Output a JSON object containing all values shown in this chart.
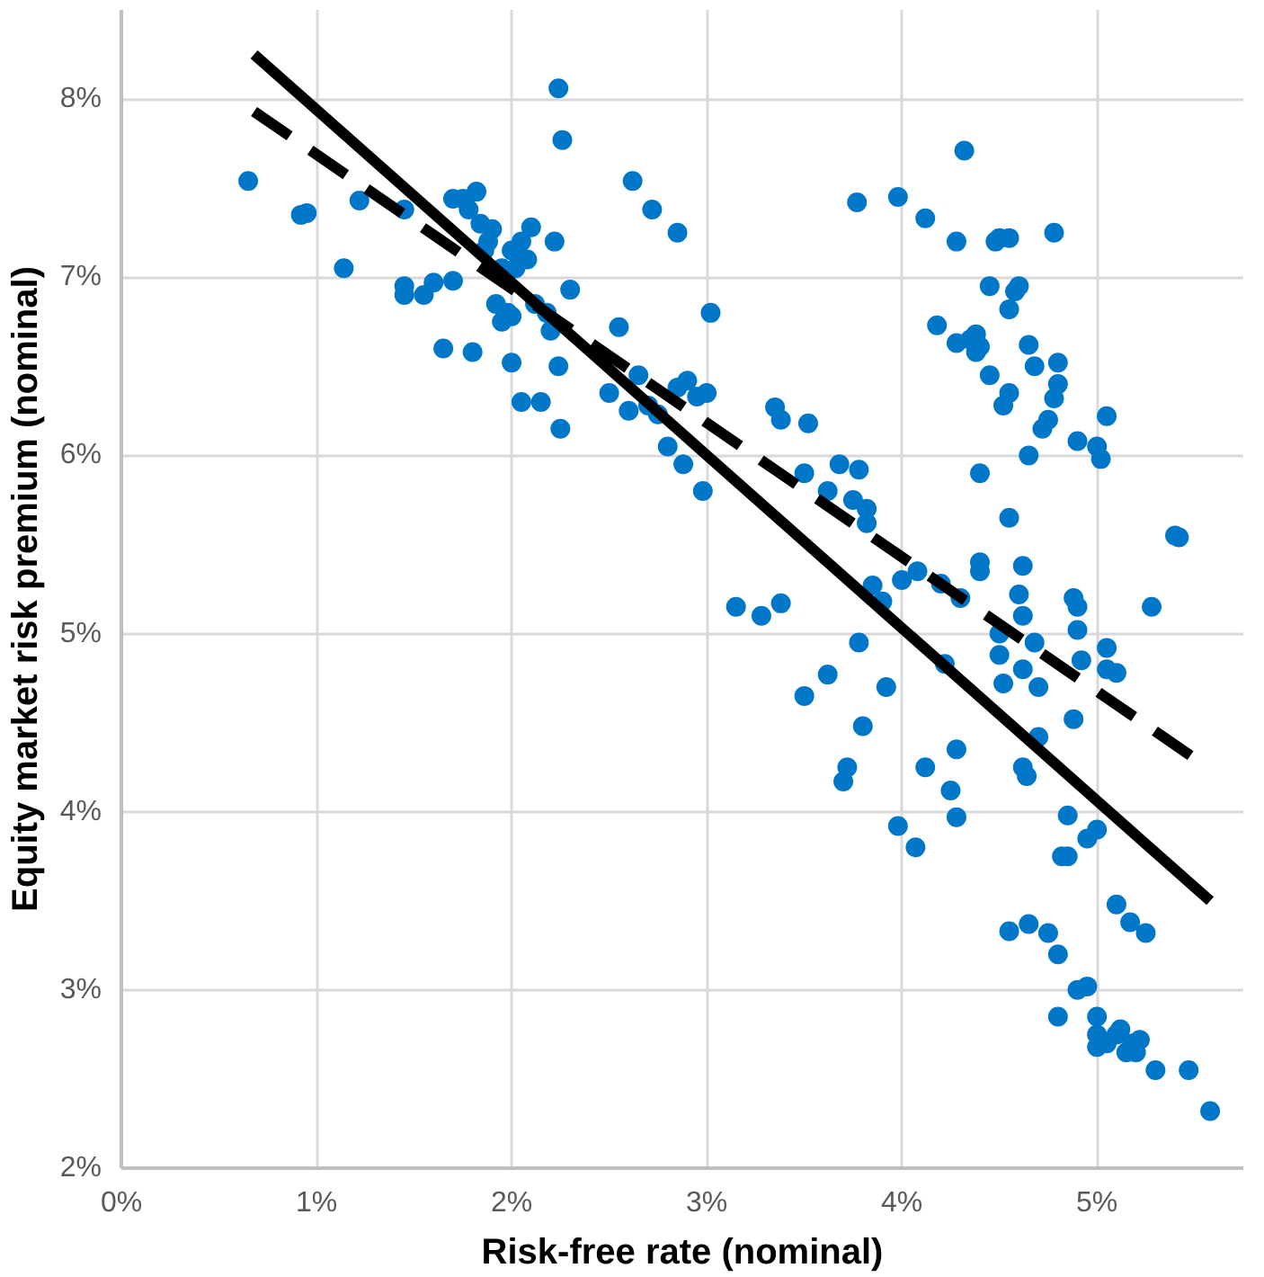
{
  "chart_data": {
    "type": "scatter",
    "xlabel": "Risk-free rate (nominal)",
    "ylabel": "Equity market risk premium (nominal)",
    "xlim": [
      0,
      5.75
    ],
    "ylim": [
      2,
      8.5
    ],
    "xticks": [
      {
        "value": 0,
        "label": "0%"
      },
      {
        "value": 1,
        "label": "1%"
      },
      {
        "value": 2,
        "label": "2%"
      },
      {
        "value": 3,
        "label": "3%"
      },
      {
        "value": 4,
        "label": "4%"
      },
      {
        "value": 5,
        "label": "5%"
      }
    ],
    "yticks": [
      {
        "value": 2,
        "label": "2%"
      },
      {
        "value": 3,
        "label": "3%"
      },
      {
        "value": 4,
        "label": "4%"
      },
      {
        "value": 5,
        "label": "5%"
      },
      {
        "value": 6,
        "label": "6%"
      },
      {
        "value": 7,
        "label": "7%"
      },
      {
        "value": 8,
        "label": "8%"
      }
    ],
    "grid": true,
    "series": [
      {
        "marker": "circle",
        "color": "#0077c8",
        "x": [
          0.65,
          0.92,
          0.95,
          1.22,
          1.14,
          1.45,
          1.45,
          1.45,
          1.55,
          1.6,
          1.65,
          1.7,
          1.7,
          1.75,
          1.78,
          1.8,
          1.82,
          1.84,
          1.86,
          1.88,
          1.9,
          1.92,
          1.95,
          1.98,
          2.0,
          2.0,
          2.02,
          2.05,
          2.05,
          2.08,
          2.1,
          2.12,
          2.15,
          2.18,
          2.22,
          2.24,
          2.26,
          2.24,
          2.25,
          2.3,
          2.2,
          1.95,
          2.0,
          2.5,
          2.55,
          2.6,
          2.62,
          2.72,
          2.85,
          2.65,
          2.7,
          2.75,
          2.8,
          2.85,
          2.9,
          2.88,
          2.95,
          3.0,
          3.02,
          2.98,
          3.15,
          3.28,
          3.38,
          3.35,
          3.38,
          3.5,
          3.52,
          3.5,
          3.62,
          3.62,
          3.68,
          3.7,
          3.72,
          3.75,
          3.78,
          3.77,
          3.8,
          3.78,
          3.82,
          3.82,
          3.85,
          3.9,
          3.92,
          3.98,
          4.0,
          3.98,
          4.08,
          4.07,
          4.12,
          4.12,
          4.18,
          4.2,
          4.22,
          4.25,
          4.28,
          4.28,
          4.28,
          4.28,
          4.3,
          4.32,
          4.35,
          4.38,
          4.38,
          4.4,
          4.4,
          4.4,
          4.4,
          4.45,
          4.45,
          4.48,
          4.5,
          4.52,
          4.5,
          4.5,
          4.52,
          4.55,
          4.55,
          4.55,
          4.55,
          4.58,
          4.6,
          4.6,
          4.62,
          4.62,
          4.62,
          4.62,
          4.64,
          4.65,
          4.65,
          4.68,
          4.68,
          4.7,
          4.7,
          4.72,
          4.75,
          4.78,
          4.78,
          4.8,
          4.8,
          4.82,
          4.85,
          4.85,
          4.88,
          4.9,
          4.9,
          4.92,
          4.88,
          4.9,
          4.95,
          5.0,
          5.0,
          5.02,
          5.05,
          5.05,
          5.05,
          5.1,
          5.1,
          5.17,
          5.25,
          5.28,
          5.4,
          5.42,
          4.65,
          4.75,
          4.55,
          4.8,
          4.8,
          4.9,
          4.95,
          5.0,
          5.0,
          5.05,
          5.1,
          5.12,
          5.15,
          5.18,
          5.22,
          5.3,
          5.47,
          5.58,
          5.0,
          5.2
        ],
        "values": [
          7.54,
          7.35,
          7.36,
          7.43,
          7.05,
          7.38,
          6.9,
          6.95,
          6.9,
          6.97,
          6.6,
          6.98,
          7.44,
          7.44,
          7.38,
          6.58,
          7.48,
          7.3,
          7.15,
          7.2,
          7.27,
          6.85,
          7.05,
          6.8,
          7.15,
          6.52,
          7.05,
          6.3,
          7.2,
          7.1,
          7.28,
          6.85,
          6.3,
          6.8,
          7.2,
          8.06,
          7.77,
          6.5,
          6.15,
          6.93,
          6.7,
          6.75,
          6.78,
          6.35,
          6.72,
          6.25,
          7.54,
          7.38,
          7.25,
          6.45,
          6.28,
          6.23,
          6.05,
          6.38,
          6.42,
          5.95,
          6.33,
          6.35,
          6.8,
          5.8,
          5.15,
          5.1,
          5.17,
          6.27,
          6.2,
          4.65,
          6.18,
          5.9,
          5.8,
          4.77,
          5.95,
          4.17,
          4.25,
          5.75,
          5.92,
          7.42,
          4.48,
          4.95,
          5.7,
          5.62,
          5.27,
          5.18,
          4.7,
          3.92,
          5.3,
          7.45,
          5.35,
          3.8,
          4.25,
          7.33,
          6.73,
          5.28,
          4.83,
          4.12,
          6.63,
          7.2,
          3.97,
          4.35,
          5.2,
          7.71,
          6.65,
          6.58,
          6.68,
          6.61,
          5.9,
          5.4,
          5.35,
          6.45,
          6.95,
          7.2,
          7.22,
          6.28,
          5.0,
          4.88,
          4.72,
          6.35,
          5.65,
          7.22,
          6.82,
          6.92,
          6.95,
          5.22,
          5.38,
          5.1,
          4.8,
          4.25,
          4.2,
          6.62,
          6.0,
          6.5,
          4.95,
          4.7,
          4.42,
          6.15,
          6.2,
          6.32,
          7.25,
          6.4,
          6.52,
          3.75,
          3.75,
          3.98,
          5.2,
          5.15,
          5.02,
          4.85,
          4.52,
          6.08,
          3.85,
          3.9,
          6.05,
          5.98,
          6.22,
          4.92,
          4.8,
          4.78,
          3.48,
          3.38,
          3.32,
          5.15,
          5.55,
          5.54,
          3.37,
          3.32,
          3.33,
          3.2,
          2.85,
          3.0,
          3.02,
          2.85,
          2.75,
          2.7,
          2.75,
          2.78,
          2.65,
          2.7,
          2.72,
          2.55,
          2.55,
          2.32,
          2.68,
          2.65
        ]
      },
      {
        "type": "line",
        "marker": "none",
        "color": "#000000",
        "line_style": "solid",
        "x": [
          0.68,
          5.58
        ],
        "values": [
          8.25,
          3.5
        ]
      },
      {
        "type": "line",
        "marker": "none",
        "color": "#000000",
        "line_style": "dashed",
        "x": [
          0.68,
          5.5
        ],
        "values": [
          7.93,
          4.3
        ]
      }
    ]
  }
}
